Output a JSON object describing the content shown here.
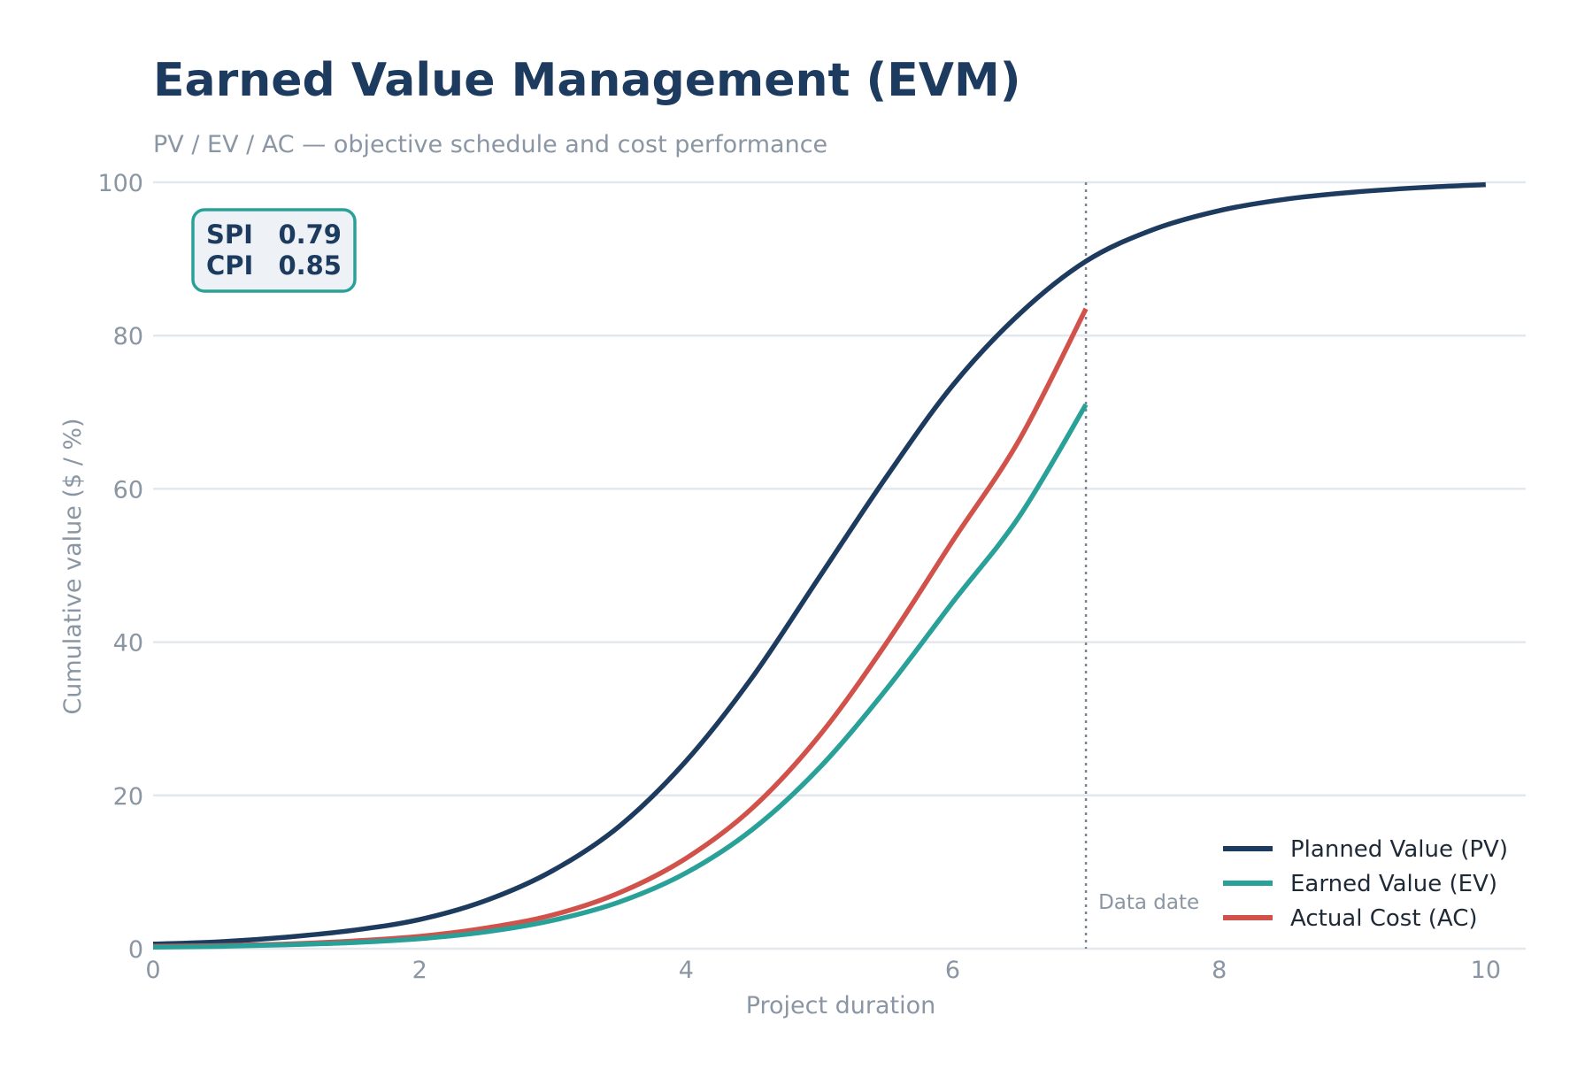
{
  "chart_data": {
    "type": "line",
    "title": "Earned Value Management (EVM)",
    "subtitle": "PV / EV / AC — objective schedule and cost performance",
    "xlabel": "Project duration",
    "ylabel": "Cumulative value ($ / %)",
    "xlim": [
      0,
      10.3
    ],
    "ylim": [
      0,
      100
    ],
    "xticks": [
      0,
      2,
      4,
      6,
      8,
      10
    ],
    "yticks": [
      0,
      20,
      40,
      60,
      80,
      100
    ],
    "grid": "horizontal",
    "legend_position": "bottom-right",
    "data_date": {
      "x": 7,
      "label": "Data date"
    },
    "kpi": {
      "spi_label": "SPI",
      "spi_value": "0.79",
      "cpi_label": "CPI",
      "cpi_value": "0.85"
    },
    "series": [
      {
        "name": "Planned Value (PV)",
        "color": "#1d3a5f",
        "x": [
          0,
          0.5,
          1,
          1.5,
          2,
          2.5,
          3,
          3.5,
          4,
          4.5,
          5,
          5.5,
          6,
          6.5,
          7,
          7.5,
          8,
          8.5,
          9,
          9.5,
          10
        ],
        "y": [
          0.6,
          0.9,
          1.5,
          2.4,
          3.8,
          6.3,
          10.2,
          16.0,
          24.5,
          35.5,
          48.5,
          61.5,
          73.5,
          82.8,
          89.7,
          93.8,
          96.3,
          97.8,
          98.7,
          99.3,
          99.7
        ]
      },
      {
        "name": "Earned Value (EV)",
        "color": "#2aa198",
        "x": [
          0,
          0.5,
          1,
          1.5,
          2,
          2.5,
          3,
          3.5,
          4,
          4.5,
          5,
          5.5,
          6,
          6.5,
          7
        ],
        "y": [
          0.2,
          0.3,
          0.5,
          0.8,
          1.3,
          2.2,
          3.7,
          6.1,
          9.9,
          15.6,
          23.6,
          33.8,
          45.2,
          56.4,
          71.0
        ]
      },
      {
        "name": "Actual Cost (AC)",
        "color": "#d1524a",
        "x": [
          0,
          0.5,
          1,
          1.5,
          2,
          2.5,
          3,
          3.5,
          4,
          4.5,
          5,
          5.5,
          6,
          6.5,
          7
        ],
        "y": [
          0.3,
          0.4,
          0.6,
          1.0,
          1.6,
          2.7,
          4.4,
          7.3,
          11.8,
          18.4,
          27.8,
          39.8,
          53.2,
          66.4,
          83.5
        ]
      }
    ]
  }
}
